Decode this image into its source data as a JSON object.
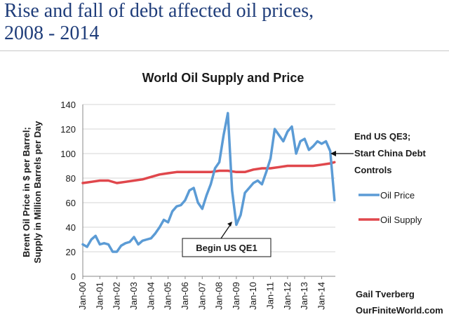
{
  "slide": {
    "title_line1": "Rise and fall of debt affected oil prices,",
    "title_line2": "2008 - 2014"
  },
  "credit": {
    "line1": "Gail Tverberg",
    "line2": "OurFiniteWorld.com"
  },
  "colors": {
    "oil_price": "#5b9bd5",
    "oil_supply": "#e0474c",
    "title": "#1f3d7a"
  },
  "chart_data": {
    "type": "line",
    "title": "World Oil Supply and Price",
    "ylabel_line1": "Brent Oil Price in $ per Barrel;",
    "ylabel_line2": "Supply in Million Barrels per Day",
    "xlabel": "",
    "ylim": [
      0,
      140
    ],
    "yticks": [
      "0",
      "20",
      "40",
      "60",
      "80",
      "100",
      "120",
      "140"
    ],
    "x_start": 2000,
    "x_end": 2014.8,
    "xticks": [
      "Jan-00",
      "Jan-01",
      "Jan-02",
      "Jan-03",
      "Jan-04",
      "Jan-05",
      "Jan-06",
      "Jan-07",
      "Jan-08",
      "Jan-09",
      "Jan-10",
      "Jan-11",
      "Jan-12",
      "Jan-13",
      "Jan-14"
    ],
    "grid": "horizontal",
    "legend_position": "right",
    "series": [
      {
        "name": "Oil Price",
        "color": "#5b9bd5",
        "x": [
          2000.0,
          2000.25,
          2000.5,
          2000.75,
          2001.0,
          2001.25,
          2001.5,
          2001.75,
          2002.0,
          2002.25,
          2002.5,
          2002.75,
          2003.0,
          2003.25,
          2003.5,
          2003.75,
          2004.0,
          2004.25,
          2004.5,
          2004.75,
          2005.0,
          2005.25,
          2005.5,
          2005.75,
          2006.0,
          2006.25,
          2006.5,
          2006.75,
          2007.0,
          2007.25,
          2007.5,
          2007.75,
          2008.0,
          2008.25,
          2008.5,
          2008.75,
          2009.0,
          2009.25,
          2009.5,
          2009.75,
          2010.0,
          2010.25,
          2010.5,
          2010.75,
          2011.0,
          2011.25,
          2011.5,
          2011.75,
          2012.0,
          2012.25,
          2012.5,
          2012.75,
          2013.0,
          2013.25,
          2013.5,
          2013.75,
          2014.0,
          2014.25,
          2014.5,
          2014.75
        ],
        "values": [
          26,
          24,
          30,
          33,
          26,
          27,
          26,
          20,
          20,
          25,
          27,
          28,
          32,
          26,
          29,
          30,
          31,
          35,
          40,
          46,
          44,
          53,
          57,
          58,
          62,
          70,
          72,
          60,
          55,
          66,
          75,
          88,
          93,
          115,
          133,
          70,
          42,
          50,
          68,
          72,
          76,
          78,
          75,
          85,
          96,
          120,
          115,
          110,
          118,
          122,
          100,
          110,
          112,
          103,
          106,
          110,
          108,
          110,
          102,
          62
        ]
      },
      {
        "name": "Oil Supply",
        "color": "#e0474c",
        "x": [
          2000.0,
          2000.5,
          2001.0,
          2001.5,
          2002.0,
          2002.5,
          2003.0,
          2003.5,
          2004.0,
          2004.5,
          2005.0,
          2005.5,
          2006.0,
          2006.5,
          2007.0,
          2007.5,
          2008.0,
          2008.5,
          2009.0,
          2009.5,
          2010.0,
          2010.5,
          2011.0,
          2011.5,
          2012.0,
          2012.5,
          2013.0,
          2013.5,
          2014.0,
          2014.5,
          2014.75
        ],
        "values": [
          76,
          77,
          78,
          78,
          76,
          77,
          78,
          79,
          81,
          83,
          84,
          85,
          85,
          85,
          85,
          85,
          86,
          86,
          85,
          85,
          87,
          88,
          88,
          89,
          90,
          90,
          90,
          90,
          91,
          92,
          93
        ]
      }
    ],
    "annotations": [
      {
        "id": "qe1",
        "lines": [
          "Begin US QE1"
        ]
      },
      {
        "id": "qe3",
        "lines": [
          "End US QE3;",
          "Start China Debt",
          "Controls"
        ]
      }
    ]
  }
}
